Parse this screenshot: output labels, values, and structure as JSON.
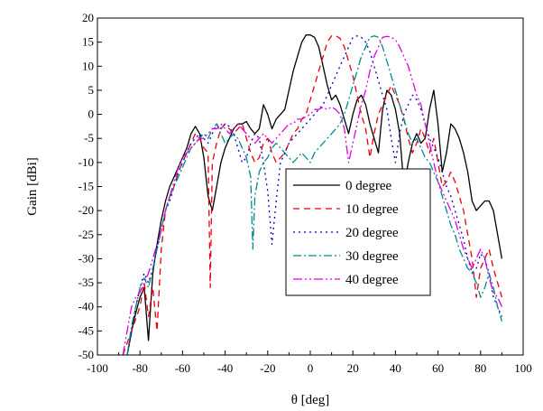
{
  "chart_data": {
    "type": "line",
    "xlabel": "θ [deg]",
    "ylabel": "Gain [dBi]",
    "xlim": [
      -100,
      100
    ],
    "ylim": [
      -50,
      20
    ],
    "xticks": [
      -100,
      -80,
      -60,
      -40,
      -20,
      0,
      20,
      40,
      60,
      80,
      100
    ],
    "yticks": [
      -50,
      -45,
      -40,
      -35,
      -30,
      -25,
      -20,
      -15,
      -10,
      -5,
      0,
      5,
      10,
      15,
      20
    ],
    "grid": false,
    "legend_position": "center-right",
    "series": [
      {
        "name": "0 degree",
        "color": "#000000",
        "dash": "",
        "x": [
          -86,
          -83,
          -80,
          -78,
          -76,
          -74,
          -72,
          -70,
          -68,
          -66,
          -64,
          -62,
          -60,
          -58,
          -56,
          -54,
          -52,
          -50,
          -48,
          -46,
          -44,
          -42,
          -40,
          -38,
          -36,
          -34,
          -32,
          -30,
          -28,
          -26,
          -24,
          -22,
          -20,
          -18,
          -16,
          -14,
          -12,
          -10,
          -8,
          -6,
          -4,
          -2,
          0,
          2,
          4,
          6,
          8,
          10,
          12,
          14,
          16,
          18,
          20,
          22,
          24,
          26,
          28,
          30,
          32,
          34,
          36,
          38,
          40,
          42,
          44,
          46,
          48,
          50,
          52,
          54,
          56,
          58,
          60,
          62,
          64,
          66,
          68,
          70,
          72,
          74,
          76,
          78,
          80,
          82,
          84,
          86,
          88,
          90
        ],
        "y": [
          -50,
          -43,
          -38,
          -36,
          -47,
          -33,
          -27,
          -22,
          -18,
          -15,
          -13,
          -11,
          -9,
          -7,
          -4,
          -2.5,
          -4,
          -9,
          -17,
          -20,
          -15,
          -10,
          -7,
          -5,
          -3,
          -2,
          -2,
          -1.5,
          -3,
          -4,
          -3,
          2,
          0,
          -3,
          -1,
          0,
          1,
          5,
          9,
          12,
          15,
          16.5,
          16.5,
          16,
          14,
          10,
          6,
          3,
          4,
          2,
          -1,
          -4,
          0,
          3,
          4,
          2,
          -2,
          -5,
          -8,
          1,
          5,
          4,
          1,
          -4,
          -15,
          -10,
          -6,
          -4,
          -6,
          -5,
          1,
          5,
          -2,
          -12,
          -8,
          -2,
          -3,
          -5,
          -8,
          -12,
          -18,
          -20,
          -19,
          -18,
          -18,
          -20,
          -25,
          -30
        ]
      },
      {
        "name": "10 degree",
        "color": "#e8000b",
        "dash": "7,5",
        "x": [
          -88,
          -84,
          -80,
          -78,
          -76,
          -74,
          -72,
          -70,
          -68,
          -66,
          -64,
          -62,
          -60,
          -58,
          -56,
          -54,
          -52,
          -50,
          -48,
          -47,
          -46,
          -44,
          -42,
          -40,
          -38,
          -36,
          -34,
          -32,
          -30,
          -28,
          -26,
          -24,
          -22,
          -20,
          -18,
          -16,
          -14,
          -12,
          -10,
          -8,
          -6,
          -4,
          -2,
          0,
          2,
          4,
          6,
          8,
          10,
          12,
          14,
          16,
          18,
          20,
          22,
          24,
          26,
          28,
          30,
          32,
          34,
          36,
          38,
          40,
          42,
          44,
          46,
          48,
          50,
          52,
          54,
          56,
          58,
          60,
          62,
          64,
          66,
          68,
          70,
          72,
          74,
          76,
          78,
          80,
          82,
          84,
          86,
          88,
          90
        ],
        "y": [
          -50,
          -45,
          -40,
          -35,
          -42,
          -36,
          -45,
          -28,
          -20,
          -17,
          -15,
          -12,
          -10,
          -8,
          -6,
          -4,
          -5,
          -7,
          -8,
          -36,
          -10,
          -6,
          -3,
          -2,
          -3,
          -4,
          -3,
          -2,
          -5,
          -8,
          -10,
          -9,
          -6,
          -5,
          -8,
          -10,
          -9,
          -8,
          -6,
          -4,
          -3,
          -1,
          0,
          3,
          6,
          9,
          12,
          15,
          16.3,
          16.3,
          15.8,
          14,
          11,
          8,
          4,
          0,
          -3,
          -9,
          -4,
          0,
          2,
          4,
          6,
          4,
          2,
          -1,
          -5,
          -8,
          -6,
          -3,
          -5,
          -8,
          -5,
          -10,
          -15,
          -14,
          -12,
          -14,
          -17,
          -20,
          -25,
          -30,
          -38,
          -32,
          -30,
          -28,
          -32,
          -35,
          -38
        ]
      },
      {
        "name": "20 degree",
        "color": "#0000cc",
        "dash": "2,4",
        "x": [
          -86,
          -84,
          -82,
          -80,
          -78,
          -76,
          -74,
          -72,
          -70,
          -68,
          -66,
          -64,
          -62,
          -60,
          -58,
          -56,
          -54,
          -52,
          -50,
          -48,
          -46,
          -44,
          -42,
          -40,
          -38,
          -36,
          -34,
          -32,
          -30,
          -28,
          -26,
          -24,
          -22,
          -20,
          -18,
          -16,
          -14,
          -12,
          -10,
          -8,
          -6,
          -4,
          -2,
          0,
          2,
          4,
          6,
          8,
          10,
          12,
          14,
          16,
          18,
          20,
          22,
          24,
          26,
          28,
          30,
          32,
          34,
          36,
          38,
          40,
          42,
          44,
          46,
          48,
          50,
          52,
          54,
          56,
          58,
          60,
          62,
          64,
          66,
          68,
          70,
          72,
          74,
          76,
          78,
          80,
          82,
          84,
          86,
          88,
          90
        ],
        "y": [
          -50,
          -45,
          -40,
          -36,
          -33,
          -35,
          -32,
          -28,
          -24,
          -20,
          -18,
          -15,
          -12,
          -10,
          -8,
          -6,
          -5,
          -4,
          -5,
          -6,
          -4,
          -2,
          -3,
          -2,
          -2.5,
          -4,
          -7,
          -10,
          -9,
          -6,
          -4,
          -5,
          -10,
          -16,
          -27,
          -18,
          -10,
          -8,
          -6,
          -5,
          -4,
          -3,
          -2,
          -1,
          0,
          1,
          2,
          4,
          6,
          8,
          10,
          12,
          14,
          16,
          16.3,
          16,
          15,
          13,
          10,
          7,
          4,
          1,
          -5,
          -10,
          -4,
          0,
          2,
          4,
          3,
          1,
          -2,
          -5,
          -7,
          -9,
          -12,
          -15,
          -17,
          -20,
          -23,
          -26,
          -30,
          -33,
          -32,
          -29,
          -30,
          -33,
          -38,
          -40,
          -42
        ]
      },
      {
        "name": "30 degree",
        "color": "#008b8b",
        "dash": "9,3,2,3",
        "x": [
          -86,
          -84,
          -82,
          -80,
          -78,
          -76,
          -74,
          -72,
          -70,
          -68,
          -66,
          -64,
          -62,
          -60,
          -58,
          -56,
          -54,
          -52,
          -50,
          -48,
          -46,
          -44,
          -42,
          -40,
          -38,
          -36,
          -34,
          -32,
          -30,
          -28,
          -27,
          -26,
          -24,
          -22,
          -20,
          -18,
          -16,
          -14,
          -12,
          -10,
          -8,
          -6,
          -4,
          -2,
          0,
          2,
          4,
          6,
          8,
          10,
          12,
          14,
          16,
          18,
          20,
          22,
          24,
          26,
          28,
          30,
          32,
          34,
          36,
          38,
          40,
          42,
          44,
          46,
          48,
          50,
          52,
          54,
          56,
          58,
          60,
          62,
          64,
          66,
          68,
          70,
          72,
          74,
          76,
          78,
          80,
          82,
          84,
          86,
          88,
          90
        ],
        "y": [
          -50,
          -44,
          -40,
          -36,
          -34,
          -36,
          -32,
          -28,
          -24,
          -20,
          -17,
          -15,
          -13,
          -11,
          -9,
          -7,
          -6,
          -5,
          -4,
          -5,
          -3,
          -2,
          -4,
          -6,
          -5,
          -4,
          -5,
          -7,
          -9,
          -13,
          -28,
          -17,
          -12,
          -10,
          -9,
          -7,
          -6,
          -7,
          -8,
          -9,
          -10,
          -9,
          -8,
          -9,
          -10,
          -8,
          -7,
          -6,
          -5,
          -4,
          -3,
          -2,
          0,
          3,
          6,
          9,
          12,
          14,
          16,
          16.3,
          16,
          14,
          11,
          8,
          5,
          2,
          -1,
          -4,
          -6,
          -5,
          -7,
          -9,
          -10,
          -12,
          -14,
          -17,
          -20,
          -23,
          -25,
          -28,
          -30,
          -32,
          -33,
          -35,
          -38,
          -36,
          -33,
          -36,
          -40,
          -43
        ]
      },
      {
        "name": "40 degree",
        "color": "#e000e0",
        "dash": "10,3,2,3,2,3",
        "x": [
          -88,
          -86,
          -84,
          -82,
          -80,
          -78,
          -76,
          -74,
          -72,
          -70,
          -68,
          -66,
          -64,
          -62,
          -60,
          -58,
          -56,
          -54,
          -52,
          -50,
          -48,
          -46,
          -44,
          -42,
          -40,
          -38,
          -36,
          -34,
          -32,
          -30,
          -28,
          -26,
          -24,
          -22,
          -20,
          -18,
          -16,
          -14,
          -12,
          -10,
          -8,
          -6,
          -4,
          -2,
          0,
          2,
          4,
          6,
          8,
          10,
          12,
          14,
          16,
          18,
          20,
          22,
          24,
          26,
          28,
          30,
          32,
          34,
          36,
          38,
          40,
          42,
          44,
          46,
          48,
          50,
          52,
          54,
          56,
          58,
          60,
          62,
          64,
          66,
          68,
          70,
          72,
          74,
          76,
          78,
          80,
          82,
          84,
          86,
          88,
          90
        ],
        "y": [
          -50,
          -45,
          -40,
          -38,
          -37,
          -35,
          -33,
          -30,
          -27,
          -24,
          -20,
          -17,
          -14,
          -11,
          -9,
          -8,
          -7,
          -6,
          -5,
          -5,
          -4,
          -3,
          -3,
          -2,
          -3,
          -4,
          -3,
          -2,
          -3,
          -4,
          -5,
          -6,
          -5,
          -4,
          -5,
          -6,
          -5,
          -4,
          -3,
          -2,
          -2,
          -1,
          -1,
          -0.5,
          0,
          1,
          1,
          1.5,
          1,
          1.5,
          1,
          0,
          -3,
          -10,
          -6,
          -2,
          2,
          5,
          9,
          12,
          14,
          16,
          16.2,
          16,
          15.5,
          14,
          12,
          10,
          7,
          4,
          2,
          -2,
          -6,
          -10,
          -14,
          -16,
          -18,
          -20,
          -22,
          -25,
          -28,
          -30,
          -32,
          -30,
          -28,
          -30,
          -34,
          -37,
          -38,
          -40
        ]
      }
    ]
  }
}
